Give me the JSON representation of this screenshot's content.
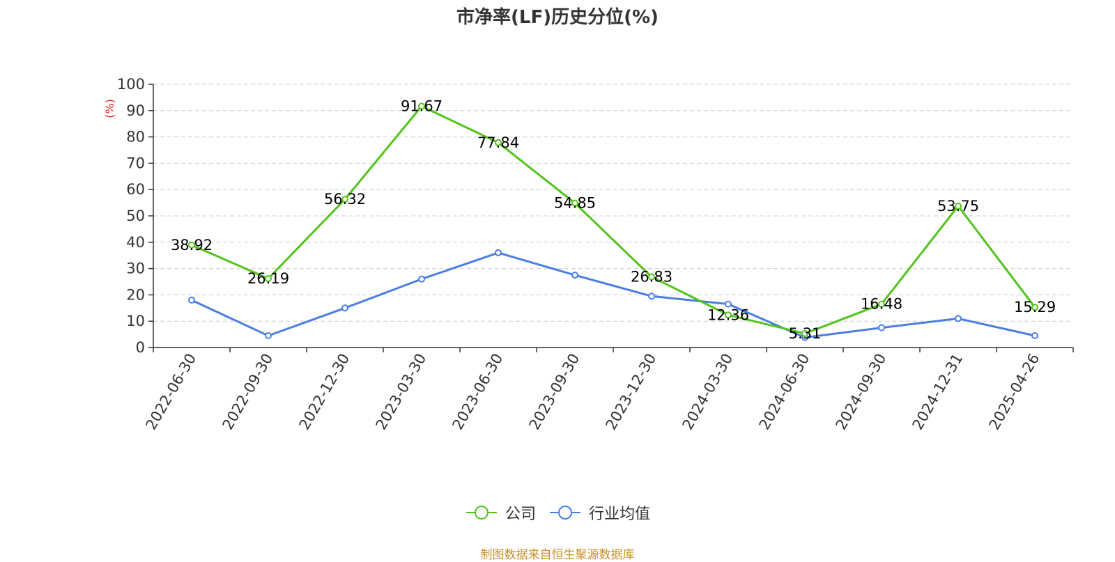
{
  "title": "市净率(LF)历史分位(%)",
  "source_note": "制图数据来自恒生聚源数据库",
  "chart_data": {
    "type": "line",
    "title": "市净率(LF)历史分位(%)",
    "ylabel": "(%)",
    "xlabel": "",
    "ylim": [
      0,
      100
    ],
    "yticks": [
      0,
      10,
      20,
      30,
      40,
      50,
      60,
      70,
      80,
      90,
      100
    ],
    "grid": true,
    "legend_position": "bottom",
    "categories": [
      "2022-06-30",
      "2022-09-30",
      "2022-12-30",
      "2023-03-30",
      "2023-06-30",
      "2023-09-30",
      "2023-12-30",
      "2024-03-30",
      "2024-06-30",
      "2024-09-30",
      "2024-12-31",
      "2025-04-26"
    ],
    "series": [
      {
        "name": "公司",
        "color": "#52c41a",
        "show_labels": true,
        "values": [
          38.92,
          26.19,
          56.32,
          91.67,
          77.84,
          54.85,
          26.83,
          12.36,
          5.31,
          16.48,
          53.75,
          15.29
        ]
      },
      {
        "name": "行业均值",
        "color": "#4a7ee0",
        "show_labels": false,
        "values": [
          18.0,
          4.5,
          15.0,
          26.0,
          36.0,
          27.5,
          19.5,
          16.5,
          3.8,
          7.5,
          11.0,
          4.5
        ]
      }
    ]
  }
}
